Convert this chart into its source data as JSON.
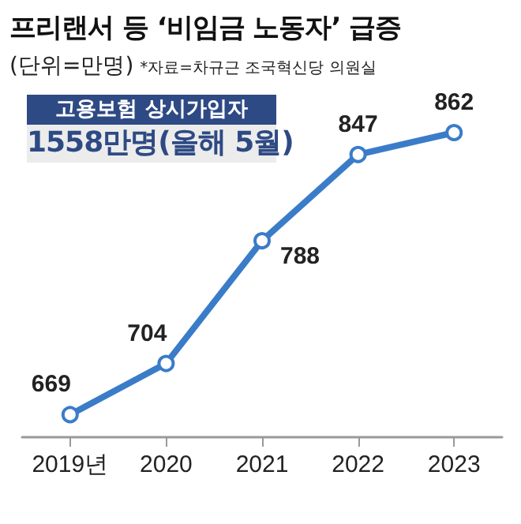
{
  "chart_data": {
    "type": "line",
    "title": "프리랜서 등 ‘비임금 노동자’ 급증",
    "subtitle": "(단위=만명)",
    "annotations": [
      "*자료=차규근 조국혁신당 의원실",
      "고용보험 상시가입자",
      "1558만명(올해 5월)"
    ],
    "categories": [
      "2019년",
      "2020",
      "2021",
      "2022",
      "2023"
    ],
    "series": [
      {
        "color": "#3a7cc8",
        "values": [
          669,
          704,
          788,
          847,
          862
        ]
      }
    ],
    "data_labels": true,
    "marker": "circle",
    "line_style": "solid",
    "grid": false,
    "tick_labels": "x"
  }
}
